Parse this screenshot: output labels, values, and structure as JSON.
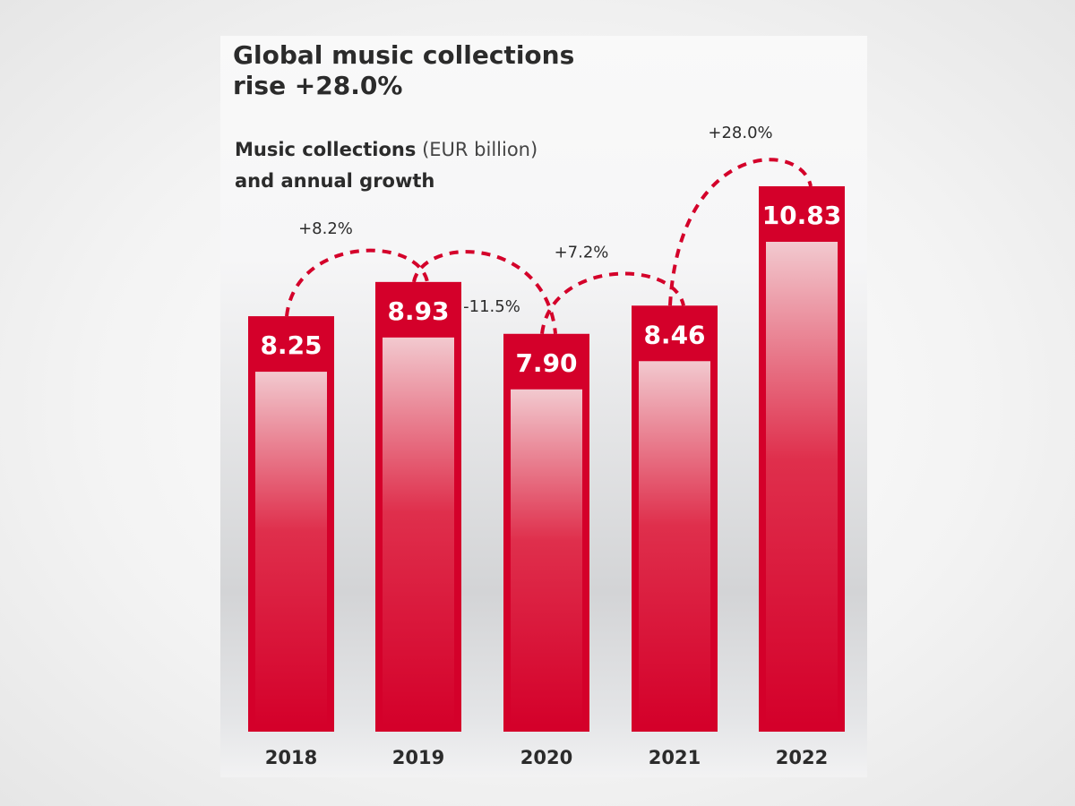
{
  "chart_data": {
    "type": "bar",
    "title": "Global music collections rise +28.0%",
    "title_lines": [
      "Global music collections",
      "rise +28.0%"
    ],
    "subtitle_bold_1": "Music collections",
    "subtitle_light": " (EUR billion)",
    "subtitle_bold_2": "and annual growth",
    "ylabel": "Music collections (EUR billion)",
    "categories": [
      "2018",
      "2019",
      "2020",
      "2021",
      "2022"
    ],
    "values": [
      8.25,
      8.93,
      7.9,
      8.46,
      10.83
    ],
    "value_labels": [
      "8.25",
      "8.93",
      "7.90",
      "8.46",
      "10.83"
    ],
    "growth": [
      "+8.2%",
      "-11.5%",
      "+7.2%",
      "+28.0%"
    ],
    "colors": {
      "bar": "#d4002a",
      "bar_light": "#f2c9cf",
      "connector": "#d4002a",
      "text": "#2b2b2b"
    }
  }
}
